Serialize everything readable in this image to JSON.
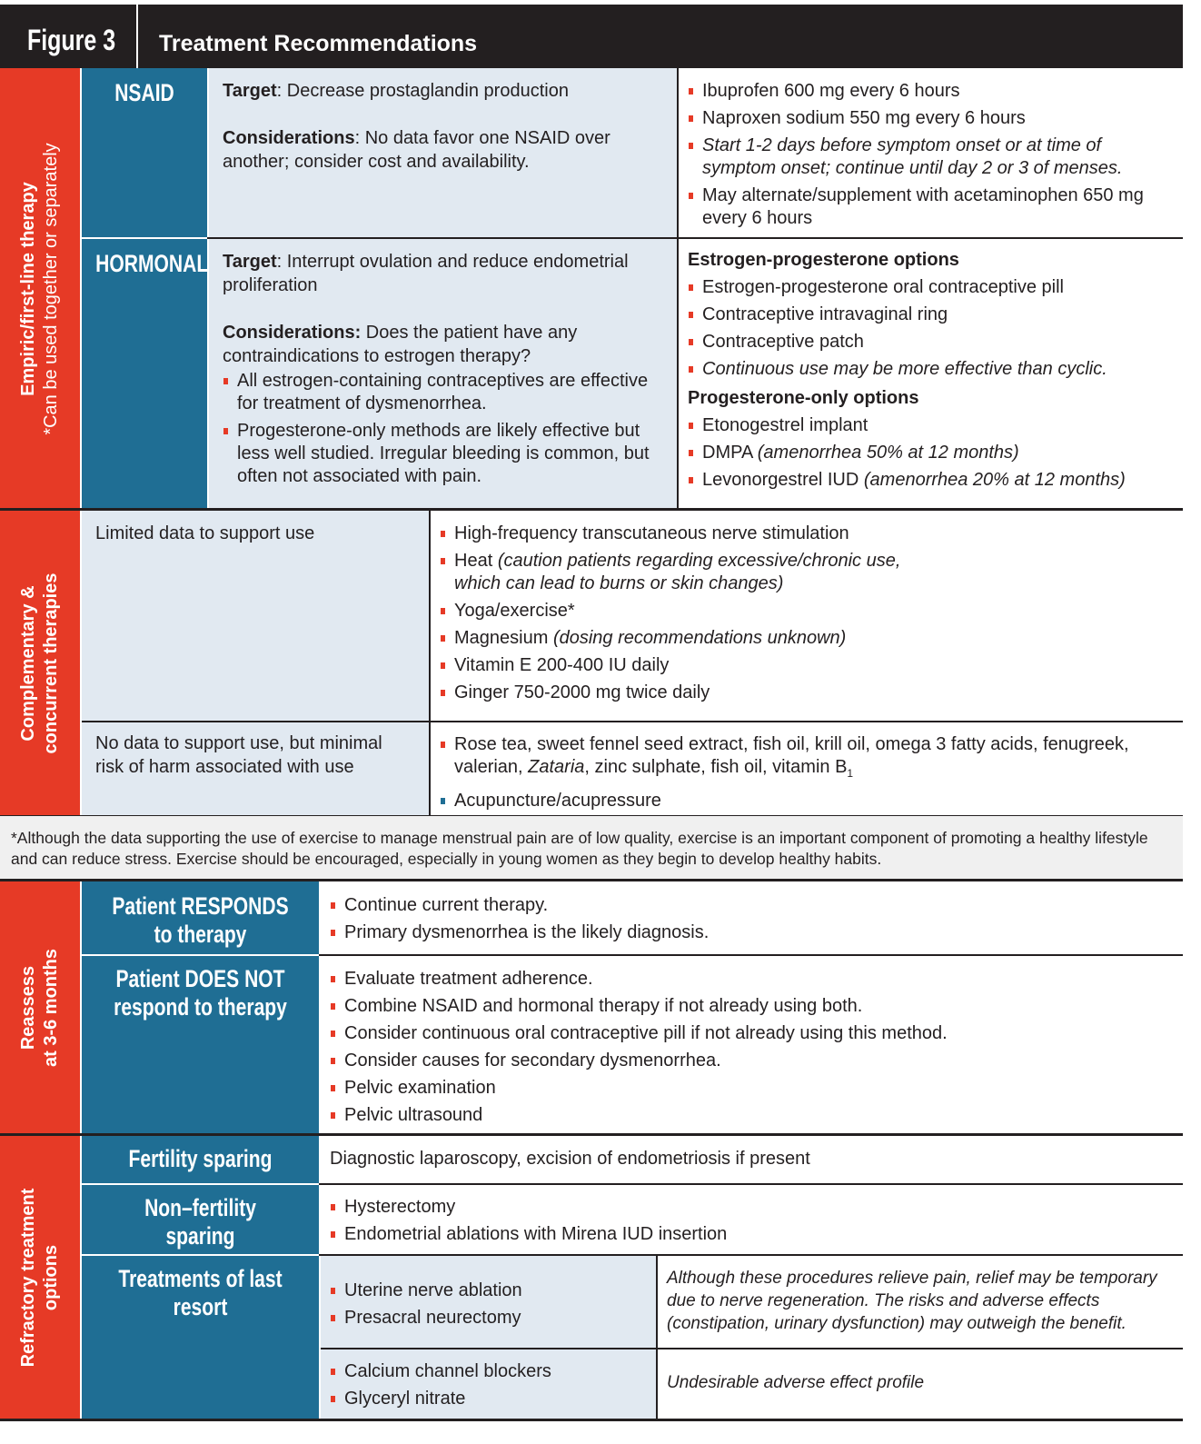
{
  "header": {
    "figure": "Figure 3",
    "title": "Treatment Recommendations"
  },
  "empiric": {
    "label": "Empiric/first-line therapy",
    "sublabel": "*Can be used together or separately",
    "nsaid": {
      "heading": "NSAID",
      "target_label": "Target",
      "target": ": Decrease prostaglandin production",
      "considerations_label": "Considerations",
      "considerations": ": No data favor one NSAID over another; consider cost and availability.",
      "items": [
        [
          {
            "text": "Ibuprofen 600 mg every 6 hours"
          }
        ],
        [
          {
            "text": "Naproxen sodium 550 mg every 6 hours"
          }
        ],
        [
          {
            "text": "Start 1-2 days before symptom onset or at time of symptom onset; continue until day 2 or 3 of menses.",
            "italic": true
          }
        ],
        [
          {
            "text": "May alternate/supplement with acetaminophen 650 mg every 6 hours"
          }
        ]
      ]
    },
    "hormonal": {
      "heading": "HORMONAL",
      "target_label": "Target",
      "target": ": Interrupt ovulation and reduce endometrial proliferation",
      "considerations_label": "Considerations:",
      "considerations": " Does the patient have any contraindications to estrogen therapy?",
      "consider_items": [
        [
          {
            "text": "All estrogen-containing contraceptives are effective for treatment of dysmenorrhea."
          }
        ],
        [
          {
            "text": "Progesterone-only methods are likely effective but less well studied. Irregular bleeding is common, but often not associated with pain."
          }
        ]
      ],
      "ep_heading": "Estrogen-progesterone options",
      "ep_items": [
        [
          {
            "text": "Estrogen-progesterone oral contraceptive pill"
          }
        ],
        [
          {
            "text": "Contraceptive intravaginal ring"
          }
        ],
        [
          {
            "text": "Contraceptive patch"
          }
        ],
        [
          {
            "text": "Continuous use may be more effective than cyclic.",
            "italic": true
          }
        ]
      ],
      "po_heading": "Progesterone-only options",
      "po_items": [
        [
          {
            "text": "Etonogestrel implant"
          }
        ],
        [
          {
            "text": "DMPA "
          },
          {
            "text": "(amenorrhea 50% at 12 months)",
            "italic": true
          }
        ],
        [
          {
            "text": "Levonorgestrel IUD "
          },
          {
            "text": "(amenorrhea 20% at 12 months)",
            "italic": true
          }
        ]
      ]
    }
  },
  "complementary": {
    "label": "Complementary &",
    "label2": "concurrent therapies",
    "limited": {
      "label": "Limited data to support use",
      "items": [
        [
          {
            "text": "High-frequency transcutaneous nerve stimulation"
          }
        ],
        [
          {
            "text": "Heat "
          },
          {
            "text": "(caution patients regarding excessive/chronic use, which can lead to burns or skin changes)",
            "italic": true
          }
        ],
        [
          {
            "text": "Yoga/exercise*"
          }
        ],
        [
          {
            "text": "Magnesium "
          },
          {
            "text": "(dosing recommendations unknown)",
            "italic": true
          }
        ],
        [
          {
            "text": "Vitamin E 200-400 IU daily"
          }
        ],
        [
          {
            "text": "Ginger 750-2000 mg twice daily"
          }
        ]
      ]
    },
    "nodata": {
      "label": "No data to support use, but minimal risk of harm associated with use",
      "items": [
        [
          {
            "text": "Rose tea, sweet fennel seed extract, fish oil, krill oil, omega 3 fatty acids, fenugreek, valerian, "
          },
          {
            "text": "Zataria",
            "italic": true
          },
          {
            "text": ", zinc sulphate, fish oil, vitamin B"
          },
          {
            "text": "1",
            "sub": true
          }
        ],
        [
          {
            "text": "Acupuncture/acupressure",
            "bullet": "#1f6e94"
          }
        ]
      ]
    }
  },
  "footnote": "*Although the data supporting the use of exercise to manage menstrual pain are of low quality, exercise is an important component of promoting a healthy lifestyle and can reduce stress. Exercise should be encouraged, especially in young women as they begin to develop healthy habits.",
  "reassess": {
    "label": "Reassess",
    "label2": "at 3-6 months",
    "responds": {
      "heading1": "Patient RESPONDS",
      "heading2": "to therapy",
      "items": [
        [
          {
            "text": "Continue current therapy."
          }
        ],
        [
          {
            "text": "Primary dysmenorrhea is the likely diagnosis."
          }
        ]
      ]
    },
    "not_respond": {
      "heading1": "Patient DOES NOT",
      "heading2": "respond to therapy",
      "items": [
        [
          {
            "text": "Evaluate treatment adherence."
          }
        ],
        [
          {
            "text": "Combine NSAID and hormonal therapy if not already using both."
          }
        ],
        [
          {
            "text": "Consider continuous oral contraceptive pill if not already using this method."
          }
        ],
        [
          {
            "text": "Consider causes for secondary dysmenorrhea."
          }
        ],
        [
          {
            "text": "Pelvic examination"
          }
        ],
        [
          {
            "text": "Pelvic ultrasound"
          }
        ]
      ]
    }
  },
  "refractory": {
    "label": "Refractory treatment",
    "label2": "options",
    "fertility": {
      "heading": "Fertility sparing",
      "text": "Diagnostic laparoscopy, excision of endometriosis if present"
    },
    "nonfertility": {
      "heading": "Non–fertility sparing",
      "items": [
        [
          {
            "text": "Hysterectomy"
          }
        ],
        [
          {
            "text": "Endometrial ablations with Mirena IUD insertion"
          }
        ]
      ]
    },
    "last_resort": {
      "heading": "Treatments of last resort",
      "group1": {
        "items": [
          [
            {
              "text": "Uterine nerve ablation"
            }
          ],
          [
            {
              "text": "Presacral neurectomy"
            }
          ]
        ],
        "note": "Although these procedures relieve pain, relief may be temporary due to nerve regeneration. The risks and adverse effects (constipation, urinary dysfunction) may outweigh the benefit."
      },
      "group2": {
        "items": [
          [
            {
              "text": "Calcium channel blockers"
            }
          ],
          [
            {
              "text": "Glyceryl nitrate"
            }
          ]
        ],
        "note": "Undesirable adverse effect profile"
      }
    }
  },
  "colors": {
    "header": "#231f20",
    "red": "#e63a26",
    "blue": "#1f6e94",
    "light": "#e1e9f1"
  }
}
